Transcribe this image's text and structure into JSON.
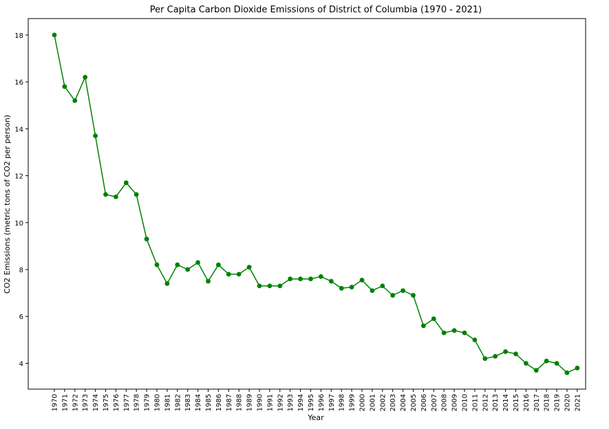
{
  "chart_data": {
    "type": "line",
    "title": "Per Capita Carbon Dioxide Emissions of District of Columbia (1970 - 2021)",
    "xlabel": "Year",
    "ylabel": "CO2 Emissions (metric tons of CO2 per person)",
    "x": [
      1970,
      1971,
      1972,
      1973,
      1974,
      1975,
      1976,
      1977,
      1978,
      1979,
      1980,
      1981,
      1982,
      1983,
      1984,
      1985,
      1986,
      1987,
      1988,
      1989,
      1990,
      1991,
      1992,
      1993,
      1994,
      1995,
      1996,
      1997,
      1998,
      1999,
      2000,
      2001,
      2002,
      2003,
      2004,
      2005,
      2006,
      2007,
      2008,
      2009,
      2010,
      2011,
      2012,
      2013,
      2014,
      2015,
      2016,
      2017,
      2018,
      2019,
      2020,
      2021
    ],
    "values": [
      18.0,
      15.8,
      15.2,
      16.2,
      13.7,
      11.2,
      11.1,
      11.7,
      11.2,
      9.3,
      8.2,
      7.4,
      8.2,
      8.0,
      8.3,
      7.5,
      8.2,
      7.8,
      7.8,
      8.1,
      7.3,
      7.3,
      7.3,
      7.6,
      7.6,
      7.6,
      7.7,
      7.5,
      7.2,
      7.25,
      7.55,
      7.1,
      7.3,
      6.9,
      7.1,
      6.9,
      5.6,
      5.9,
      5.3,
      5.4,
      5.3,
      5.0,
      4.2,
      4.3,
      4.5,
      4.4,
      4.0,
      3.7,
      4.1,
      4.0,
      3.6,
      3.8
    ],
    "ylim": [
      2.9,
      18.7
    ],
    "yticks": [
      4,
      6,
      8,
      10,
      12,
      14,
      16,
      18
    ],
    "grid": false,
    "legend": false,
    "colors": {
      "line": "#008000",
      "marker": "#008000",
      "axis": "#000000"
    }
  }
}
